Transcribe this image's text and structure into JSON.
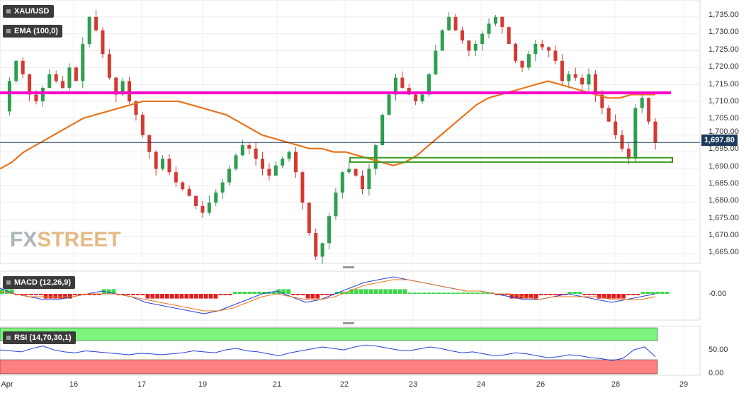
{
  "symbol": "XAU/USD",
  "indicators": {
    "ema_label": "EMA (100,0)",
    "macd_label": "MACD (12,26,9)",
    "rsi_label": "RSI (14,70,30,1)"
  },
  "current_price": "1,697.80",
  "watermark": {
    "left": "FX",
    "right": "STREET"
  },
  "y_axis_ticks": [
    "1,735.00",
    "1,730.00",
    "1,725.00",
    "1,720.00",
    "1,715.00",
    "1,710.00",
    "1,705.00",
    "1,700.00",
    "1,695.00",
    "1,690.00",
    "1,685.00",
    "1,680.00",
    "1,675.00",
    "1,670.00",
    "1,665.00"
  ],
  "macd_axis_ticks": [
    "-0.00"
  ],
  "rsi_axis_ticks": [
    "50.00",
    "0.00"
  ],
  "x_axis_ticks": [
    "Apr",
    "16",
    "17",
    "19",
    "21",
    "22",
    "23",
    "24",
    "26",
    "28",
    "29"
  ],
  "colors": {
    "up": "#2e9e4f",
    "down": "#d33a32",
    "ema": "#e8741e",
    "resistance": "#ff00cc",
    "support_box": "#3a9a1e",
    "price_line": "#1c3a5e",
    "macd": "#2540d8",
    "signal": "#e8741e",
    "hist_up": "#3fd64a",
    "hist_down": "#e02020",
    "rsi": "#2540d8",
    "rsi_overbought": "#7cf57c",
    "rsi_oversold": "#ff8080"
  },
  "chart_data": [
    {
      "type": "candlestick",
      "title": "XAU/USD",
      "ylim": [
        1662,
        1740
      ],
      "x_ticks": [
        "Apr",
        "16",
        "17",
        "19",
        "21",
        "22",
        "23",
        "24",
        "26",
        "28",
        "29"
      ],
      "close_path": [
        1707,
        1716,
        1722,
        1718,
        1712,
        1710,
        1714,
        1718,
        1716,
        1714,
        1720,
        1716,
        1727,
        1735,
        1731,
        1724,
        1717,
        1712,
        1716,
        1710,
        1706,
        1700,
        1695,
        1690,
        1693,
        1689,
        1686,
        1684,
        1682,
        1679,
        1677,
        1680,
        1683,
        1686,
        1690,
        1694,
        1697,
        1696,
        1693,
        1690,
        1688,
        1691,
        1693,
        1695,
        1689,
        1680,
        1671,
        1664,
        1668,
        1676,
        1683,
        1689,
        1690,
        1688,
        1684,
        1690,
        1697,
        1706,
        1712,
        1717,
        1714,
        1712,
        1710,
        1712,
        1718,
        1725,
        1731,
        1735,
        1731,
        1728,
        1725,
        1727,
        1730,
        1733,
        1735,
        1732,
        1727,
        1722,
        1720,
        1724,
        1727,
        1726,
        1725,
        1722,
        1716,
        1718,
        1717,
        1715,
        1718,
        1712,
        1708,
        1704,
        1700,
        1696,
        1693,
        1708,
        1711,
        1704,
        1697.8
      ],
      "ema_100_path": [
        1690,
        1692,
        1695,
        1697,
        1699,
        1701,
        1703,
        1705,
        1706,
        1707,
        1708,
        1709,
        1710,
        1710,
        1710,
        1710,
        1709,
        1708,
        1707,
        1706,
        1704,
        1702,
        1700,
        1699,
        1698,
        1697,
        1696,
        1696,
        1695,
        1695,
        1694,
        1693,
        1692,
        1691,
        1692,
        1694,
        1697,
        1700,
        1703,
        1706,
        1709,
        1711,
        1712,
        1713,
        1714,
        1715,
        1716,
        1715,
        1714,
        1713,
        1712,
        1711,
        1711,
        1712,
        1712,
        1712
      ],
      "horizontal_lines": [
        {
          "name": "resistance",
          "value": 1712.5,
          "color": "#ff00cc"
        },
        {
          "name": "current",
          "value": 1697.8,
          "color": "#1c3a5e"
        }
      ],
      "zones": [
        {
          "name": "support",
          "from": 1692.0,
          "to": 1693.3,
          "color": "#3a9a1e"
        }
      ]
    },
    {
      "type": "line",
      "title": "MACD (12,26,9)",
      "series": [
        {
          "name": "MACD",
          "values": [
            2,
            0,
            -1,
            -2,
            -2,
            -1,
            0,
            1,
            0,
            -1,
            -3,
            -4,
            -5,
            -6,
            -7,
            -6,
            -4,
            -2,
            0,
            1,
            -1,
            -3,
            -2,
            0,
            2,
            4,
            5,
            6,
            5,
            4,
            3,
            2,
            1,
            1,
            0,
            -1,
            -2,
            -2,
            -1,
            0,
            -1,
            -2,
            -3,
            -2,
            -1,
            0
          ]
        },
        {
          "name": "Signal",
          "values": [
            1,
            0,
            -1,
            -1,
            -1,
            -1,
            0,
            0,
            0,
            -1,
            -2,
            -3,
            -4,
            -5,
            -6,
            -6,
            -5,
            -3,
            -1,
            0,
            -1,
            -2,
            -2,
            -1,
            1,
            3,
            4,
            5,
            5,
            4,
            3,
            2,
            1,
            1,
            0,
            0,
            -1,
            -2,
            -1,
            -1,
            -1,
            -1,
            -2,
            -2,
            -2,
            -1
          ]
        }
      ]
    },
    {
      "type": "line",
      "title": "RSI (14,70,30,1)",
      "ylim": [
        0,
        100
      ],
      "series": [
        {
          "name": "RSI",
          "values": [
            52,
            50,
            48,
            55,
            60,
            52,
            48,
            46,
            50,
            48,
            46,
            44,
            42,
            45,
            44,
            42,
            44,
            46,
            50,
            48,
            46,
            52,
            55,
            50,
            48,
            44,
            40,
            46,
            50,
            54,
            58,
            55,
            52,
            58,
            62,
            60,
            56,
            52,
            50,
            54,
            58,
            55,
            50,
            46,
            48,
            44,
            40,
            42,
            46,
            44,
            40,
            36,
            38,
            42,
            40,
            36,
            34,
            30,
            35,
            52,
            58,
            38
          ]
        }
      ],
      "bands": {
        "overbought": 70,
        "oversold": 30
      }
    }
  ]
}
